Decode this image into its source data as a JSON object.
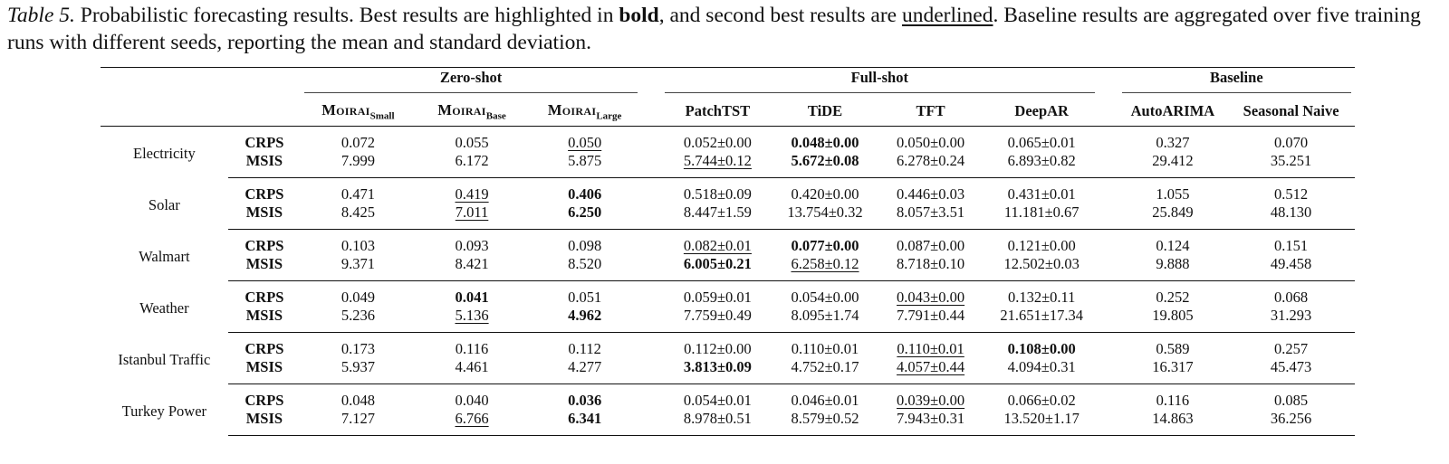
{
  "caption": {
    "label": "Table 5.",
    "text_1": " Probabilistic forecasting results. Best results are highlighted in ",
    "bold_word": "bold",
    "text_2": ", and second best results are ",
    "underlined_word": "underlined",
    "text_3": ". Baseline results are aggregated over five training runs with different seeds, reporting the mean and standard deviation."
  },
  "groups": {
    "zero_shot": "Zero-shot",
    "full_shot": "Full-shot",
    "baseline": "Baseline"
  },
  "columns": {
    "moirai_small": {
      "name": "Moirai",
      "sub": "Small"
    },
    "moirai_base": {
      "name": "Moirai",
      "sub": "Base"
    },
    "moirai_large": {
      "name": "Moirai",
      "sub": "Large"
    },
    "patchtst": "PatchTST",
    "tide": "TiDE",
    "tft": "TFT",
    "deepar": "DeepAR",
    "autoarima": "AutoARIMA",
    "seasonal_naive": "Seasonal Naive"
  },
  "rows": [
    {
      "dataset": "Electricity",
      "crps": {
        "metric": "CRPS",
        "values": [
          "0.072",
          "0.055",
          "0.050",
          "0.052±0.00",
          "0.048±0.00",
          "0.050±0.00",
          "0.065±0.01",
          "0.327",
          "0.070"
        ]
      },
      "msis": {
        "metric": "MSIS",
        "values": [
          "7.999",
          "6.172",
          "5.875",
          "5.744±0.12",
          "5.672±0.08",
          "6.278±0.24",
          "6.893±0.82",
          "29.412",
          "35.251"
        ]
      }
    },
    {
      "dataset": "Solar",
      "crps": {
        "metric": "CRPS",
        "values": [
          "0.471",
          "0.419",
          "0.406",
          "0.518±0.09",
          "0.420±0.00",
          "0.446±0.03",
          "0.431±0.01",
          "1.055",
          "0.512"
        ]
      },
      "msis": {
        "metric": "MSIS",
        "values": [
          "8.425",
          "7.011",
          "6.250",
          "8.447±1.59",
          "13.754±0.32",
          "8.057±3.51",
          "11.181±0.67",
          "25.849",
          "48.130"
        ]
      }
    },
    {
      "dataset": "Walmart",
      "crps": {
        "metric": "CRPS",
        "values": [
          "0.103",
          "0.093",
          "0.098",
          "0.082±0.01",
          "0.077±0.00",
          "0.087±0.00",
          "0.121±0.00",
          "0.124",
          "0.151"
        ]
      },
      "msis": {
        "metric": "MSIS",
        "values": [
          "9.371",
          "8.421",
          "8.520",
          "6.005±0.21",
          "6.258±0.12",
          "8.718±0.10",
          "12.502±0.03",
          "9.888",
          "49.458"
        ]
      }
    },
    {
      "dataset": "Weather",
      "crps": {
        "metric": "CRPS",
        "values": [
          "0.049",
          "0.041",
          "0.051",
          "0.059±0.01",
          "0.054±0.00",
          "0.043±0.00",
          "0.132±0.11",
          "0.252",
          "0.068"
        ]
      },
      "msis": {
        "metric": "MSIS",
        "values": [
          "5.236",
          "5.136",
          "4.962",
          "7.759±0.49",
          "8.095±1.74",
          "7.791±0.44",
          "21.651±17.34",
          "19.805",
          "31.293"
        ]
      }
    },
    {
      "dataset": "Istanbul Traffic",
      "crps": {
        "metric": "CRPS",
        "values": [
          "0.173",
          "0.116",
          "0.112",
          "0.112±0.00",
          "0.110±0.01",
          "0.110±0.01",
          "0.108±0.00",
          "0.589",
          "0.257"
        ]
      },
      "msis": {
        "metric": "MSIS",
        "values": [
          "5.937",
          "4.461",
          "4.277",
          "3.813±0.09",
          "4.752±0.17",
          "4.057±0.44",
          "4.094±0.31",
          "16.317",
          "45.473"
        ]
      }
    },
    {
      "dataset": "Turkey Power",
      "crps": {
        "metric": "CRPS",
        "values": [
          "0.048",
          "0.040",
          "0.036",
          "0.054±0.01",
          "0.046±0.01",
          "0.039±0.00",
          "0.066±0.02",
          "0.116",
          "0.085"
        ]
      },
      "msis": {
        "metric": "MSIS",
        "values": [
          "7.127",
          "6.766",
          "6.341",
          "8.978±0.51",
          "8.579±0.52",
          "7.943±0.31",
          "13.520±1.17",
          "14.863",
          "36.256"
        ]
      }
    }
  ]
}
